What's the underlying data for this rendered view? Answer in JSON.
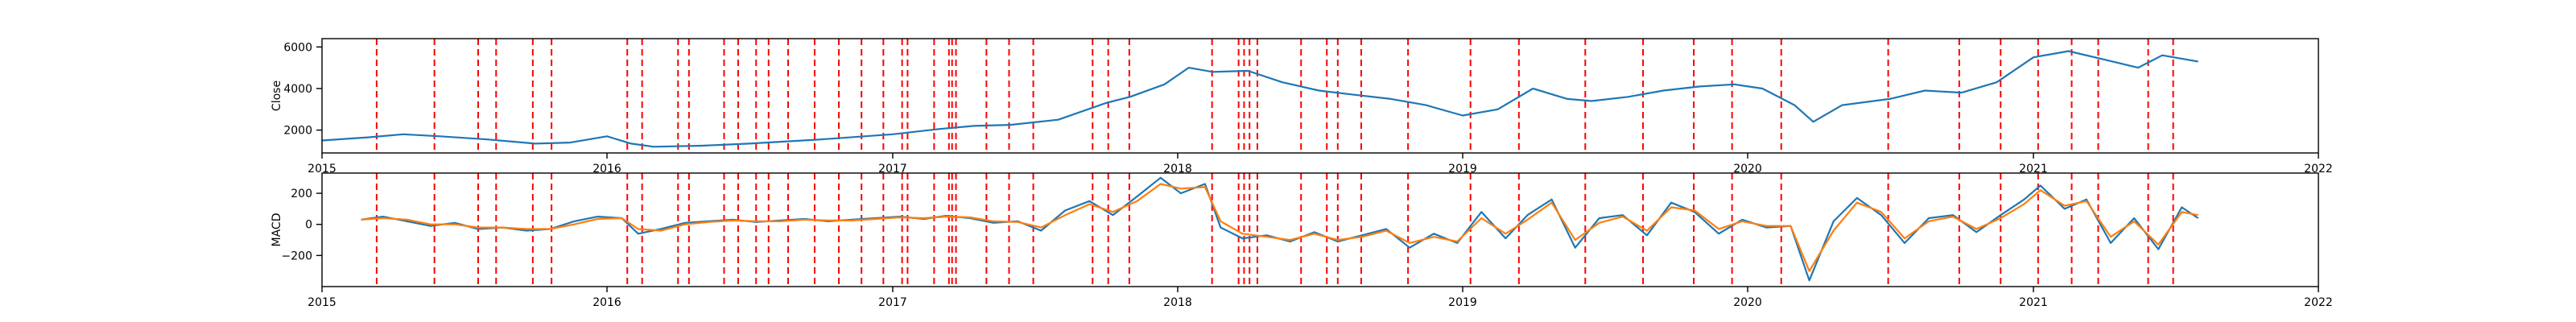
{
  "chart_data": [
    {
      "type": "line",
      "ylabel": "Close",
      "xlim": [
        "2015-01-01",
        "2022-01-01"
      ],
      "ylim": [
        900,
        6400
      ],
      "yticks": [
        2000,
        4000,
        6000
      ],
      "ytick_labels": [
        "2000",
        "4000",
        "6000"
      ],
      "xticks": [
        "2015-01-01",
        "2016-01-01",
        "2017-01-01",
        "2018-01-01",
        "2019-01-01",
        "2020-01-01",
        "2021-01-01",
        "2022-01-01"
      ],
      "xtick_labels": [
        "2015",
        "2016",
        "2017",
        "2018",
        "2019",
        "2020",
        "2021",
        "2022"
      ],
      "grid": false,
      "series": [
        {
          "color": "#1f77b4",
          "x": [
            "2015-01-01",
            "2015-03-01",
            "2015-04-15",
            "2015-06-01",
            "2015-08-01",
            "2015-10-01",
            "2015-11-15",
            "2016-01-01",
            "2016-02-01",
            "2016-03-01",
            "2016-05-01",
            "2016-07-01",
            "2016-10-01",
            "2017-01-01",
            "2017-03-01",
            "2017-04-15",
            "2017-06-01",
            "2017-08-01",
            "2017-10-01",
            "2017-11-01",
            "2017-12-15",
            "2018-01-15",
            "2018-02-15",
            "2018-04-01",
            "2018-05-15",
            "2018-07-01",
            "2018-08-15",
            "2018-10-01",
            "2018-11-15",
            "2019-01-01",
            "2019-02-15",
            "2019-04-01",
            "2019-05-15",
            "2019-06-15",
            "2019-08-01",
            "2019-09-15",
            "2019-11-01",
            "2019-12-15",
            "2020-01-20",
            "2020-03-01",
            "2020-03-25",
            "2020-05-01",
            "2020-07-01",
            "2020-08-15",
            "2020-10-01",
            "2020-11-15",
            "2021-01-01",
            "2021-02-15",
            "2021-04-01",
            "2021-05-15",
            "2021-06-15",
            "2021-07-31"
          ],
          "y": [
            1500,
            1650,
            1800,
            1700,
            1550,
            1350,
            1400,
            1700,
            1350,
            1200,
            1250,
            1350,
            1550,
            1800,
            2050,
            2200,
            2250,
            2500,
            3300,
            3600,
            4200,
            5000,
            4800,
            4850,
            4300,
            3900,
            3700,
            3500,
            3200,
            2700,
            3000,
            4000,
            3500,
            3400,
            3600,
            3900,
            4100,
            4200,
            4000,
            3200,
            2400,
            3200,
            3500,
            3900,
            3800,
            4300,
            5500,
            5800,
            5400,
            5000,
            5600,
            5300
          ]
        }
      ],
      "vlines": {
        "color": "#ff0000",
        "x": [
          "2015-03-12",
          "2015-05-25",
          "2015-07-20",
          "2015-08-12",
          "2015-09-28",
          "2015-10-22",
          "2016-01-27",
          "2016-02-15",
          "2016-04-01",
          "2016-04-15",
          "2016-05-30",
          "2016-06-17",
          "2016-07-10",
          "2016-07-26",
          "2016-08-20",
          "2016-09-23",
          "2016-10-24",
          "2016-11-22",
          "2016-12-20",
          "2017-01-13",
          "2017-01-20",
          "2017-02-23",
          "2017-03-14",
          "2017-03-18",
          "2017-03-23",
          "2017-05-01",
          "2017-05-30",
          "2017-06-30",
          "2017-09-14",
          "2017-10-04",
          "2017-10-31",
          "2018-02-14",
          "2018-03-20",
          "2018-03-27",
          "2018-04-03",
          "2018-04-13",
          "2018-06-08",
          "2018-07-11",
          "2018-07-25",
          "2018-08-24",
          "2018-10-23",
          "2019-01-11",
          "2019-03-14",
          "2019-06-07",
          "2019-08-20",
          "2019-10-24",
          "2019-12-12",
          "2020-02-13",
          "2020-06-29",
          "2020-09-28",
          "2020-11-20",
          "2021-01-07",
          "2021-02-19",
          "2021-03-25",
          "2021-05-28",
          "2021-06-29"
        ]
      }
    },
    {
      "type": "line",
      "ylabel": "MACD",
      "xlim": [
        "2015-01-01",
        "2022-01-01"
      ],
      "ylim": [
        -400,
        330
      ],
      "yticks": [
        -200,
        0,
        200
      ],
      "ytick_labels": [
        "−200",
        "0",
        "200"
      ],
      "xticks": [
        "2015-01-01",
        "2016-01-01",
        "2017-01-01",
        "2018-01-01",
        "2019-01-01",
        "2020-01-01",
        "2021-01-01",
        "2022-01-01"
      ],
      "xtick_labels": [
        "2015",
        "2016",
        "2017",
        "2018",
        "2019",
        "2020",
        "2021",
        "2022"
      ],
      "grid": false,
      "series": [
        {
          "color": "#1f77b4",
          "x": [
            "2015-02-20",
            "2015-03-20",
            "2015-04-20",
            "2015-05-20",
            "2015-06-20",
            "2015-07-20",
            "2015-08-20",
            "2015-09-20",
            "2015-10-20",
            "2015-11-20",
            "2015-12-20",
            "2016-01-20",
            "2016-02-10",
            "2016-03-10",
            "2016-04-10",
            "2016-05-10",
            "2016-06-10",
            "2016-07-10",
            "2016-08-10",
            "2016-09-10",
            "2016-10-10",
            "2016-11-10",
            "2016-12-10",
            "2017-01-10",
            "2017-02-10",
            "2017-03-10",
            "2017-04-10",
            "2017-05-10",
            "2017-06-10",
            "2017-07-10",
            "2017-08-10",
            "2017-09-10",
            "2017-10-10",
            "2017-11-10",
            "2017-12-10",
            "2018-01-05",
            "2018-02-05",
            "2018-02-25",
            "2018-03-25",
            "2018-04-25",
            "2018-05-25",
            "2018-06-25",
            "2018-07-25",
            "2018-08-25",
            "2018-09-25",
            "2018-10-25",
            "2018-11-25",
            "2018-12-25",
            "2019-01-25",
            "2019-02-25",
            "2019-03-25",
            "2019-04-25",
            "2019-05-25",
            "2019-06-25",
            "2019-07-25",
            "2019-08-25",
            "2019-09-25",
            "2019-10-25",
            "2019-11-25",
            "2019-12-25",
            "2020-01-25",
            "2020-02-25",
            "2020-03-20",
            "2020-04-20",
            "2020-05-20",
            "2020-06-20",
            "2020-07-20",
            "2020-08-20",
            "2020-09-20",
            "2020-10-20",
            "2020-11-20",
            "2020-12-20",
            "2021-01-10",
            "2021-02-10",
            "2021-03-10",
            "2021-04-10",
            "2021-05-10",
            "2021-06-10",
            "2021-07-10",
            "2021-07-31"
          ],
          "y": [
            30,
            50,
            20,
            -10,
            10,
            -30,
            -20,
            -40,
            -30,
            20,
            50,
            40,
            -60,
            -30,
            10,
            20,
            30,
            15,
            25,
            35,
            20,
            30,
            40,
            50,
            35,
            55,
            40,
            10,
            20,
            -40,
            90,
            150,
            60,
            180,
            300,
            200,
            260,
            -20,
            -90,
            -70,
            -110,
            -50,
            -110,
            -70,
            -30,
            -150,
            -60,
            -120,
            80,
            -90,
            60,
            160,
            -150,
            40,
            60,
            -70,
            140,
            80,
            -60,
            30,
            -20,
            -10,
            -360,
            20,
            170,
            60,
            -120,
            40,
            60,
            -50,
            60,
            160,
            250,
            100,
            160,
            -120,
            40,
            -160,
            110,
            40
          ]
        },
        {
          "color": "#ff7f0e",
          "x": [
            "2015-02-20",
            "2015-03-20",
            "2015-04-20",
            "2015-05-20",
            "2015-06-20",
            "2015-07-20",
            "2015-08-20",
            "2015-09-20",
            "2015-10-20",
            "2015-11-20",
            "2015-12-20",
            "2016-01-20",
            "2016-02-10",
            "2016-03-10",
            "2016-04-10",
            "2016-05-10",
            "2016-06-10",
            "2016-07-10",
            "2016-08-10",
            "2016-09-10",
            "2016-10-10",
            "2016-11-10",
            "2016-12-10",
            "2017-01-10",
            "2017-02-10",
            "2017-03-10",
            "2017-04-10",
            "2017-05-10",
            "2017-06-10",
            "2017-07-10",
            "2017-08-10",
            "2017-09-10",
            "2017-10-10",
            "2017-11-10",
            "2017-12-10",
            "2018-01-05",
            "2018-02-05",
            "2018-02-25",
            "2018-03-25",
            "2018-04-25",
            "2018-05-25",
            "2018-06-25",
            "2018-07-25",
            "2018-08-25",
            "2018-09-25",
            "2018-10-25",
            "2018-11-25",
            "2018-12-25",
            "2019-01-25",
            "2019-02-25",
            "2019-03-25",
            "2019-04-25",
            "2019-05-25",
            "2019-06-25",
            "2019-07-25",
            "2019-08-25",
            "2019-09-25",
            "2019-10-25",
            "2019-11-25",
            "2019-12-25",
            "2020-01-25",
            "2020-02-25",
            "2020-03-20",
            "2020-04-20",
            "2020-05-20",
            "2020-06-20",
            "2020-07-20",
            "2020-08-20",
            "2020-09-20",
            "2020-10-20",
            "2020-11-20",
            "2020-12-20",
            "2021-01-10",
            "2021-02-10",
            "2021-03-10",
            "2021-04-10",
            "2021-05-10",
            "2021-06-10",
            "2021-07-10",
            "2021-07-31"
          ],
          "y": [
            30,
            40,
            30,
            0,
            0,
            -20,
            -20,
            -30,
            -30,
            0,
            35,
            40,
            -30,
            -40,
            0,
            15,
            25,
            20,
            20,
            30,
            25,
            25,
            35,
            45,
            40,
            50,
            45,
            20,
            15,
            -20,
            60,
            130,
            80,
            150,
            260,
            230,
            240,
            20,
            -60,
            -80,
            -100,
            -60,
            -100,
            -80,
            -40,
            -120,
            -80,
            -110,
            40,
            -60,
            30,
            140,
            -100,
            10,
            50,
            -40,
            110,
            90,
            -30,
            20,
            -10,
            -10,
            -300,
            -40,
            140,
            80,
            -90,
            20,
            50,
            -30,
            40,
            130,
            220,
            120,
            150,
            -80,
            20,
            -130,
            80,
            60
          ]
        }
      ],
      "vlines": {
        "color": "#ff0000",
        "x": [
          "2015-03-12",
          "2015-05-25",
          "2015-07-20",
          "2015-08-12",
          "2015-09-28",
          "2015-10-22",
          "2016-01-27",
          "2016-02-15",
          "2016-04-01",
          "2016-04-15",
          "2016-05-30",
          "2016-06-17",
          "2016-07-10",
          "2016-07-26",
          "2016-08-20",
          "2016-09-23",
          "2016-10-24",
          "2016-11-22",
          "2016-12-20",
          "2017-01-13",
          "2017-01-20",
          "2017-02-23",
          "2017-03-14",
          "2017-03-18",
          "2017-03-23",
          "2017-05-01",
          "2017-05-30",
          "2017-06-30",
          "2017-09-14",
          "2017-10-04",
          "2017-10-31",
          "2018-02-14",
          "2018-03-20",
          "2018-03-27",
          "2018-04-03",
          "2018-04-13",
          "2018-06-08",
          "2018-07-11",
          "2018-07-25",
          "2018-08-24",
          "2018-10-23",
          "2019-01-11",
          "2019-03-14",
          "2019-06-07",
          "2019-08-20",
          "2019-10-24",
          "2019-12-12",
          "2020-02-13",
          "2020-06-29",
          "2020-09-28",
          "2020-11-20",
          "2021-01-07",
          "2021-02-19",
          "2021-03-25",
          "2021-05-28",
          "2021-06-29"
        ]
      }
    }
  ]
}
